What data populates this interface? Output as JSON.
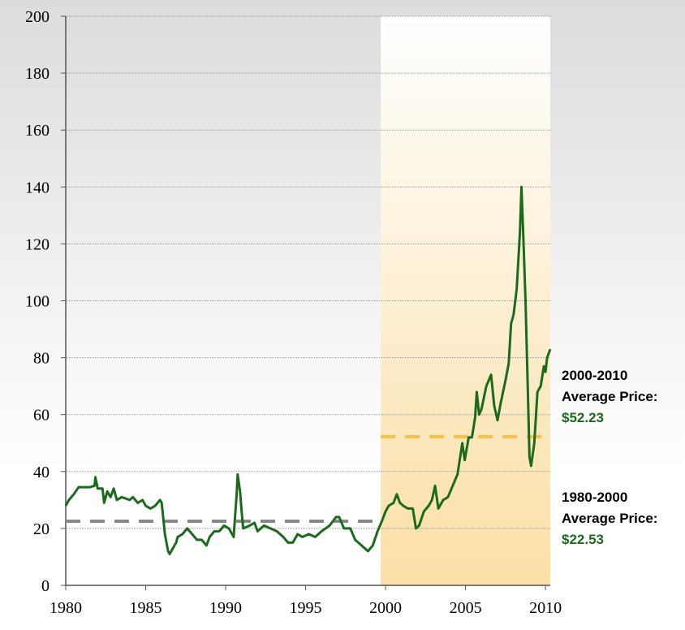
{
  "chart_data": {
    "type": "line",
    "x": [
      1980,
      1980.2,
      1980.5,
      1980.8,
      1981,
      1981.5,
      1981.8,
      1981.85,
      1982,
      1982.3,
      1982.4,
      1982.6,
      1982.8,
      1983,
      1983.2,
      1983.5,
      1984,
      1984.2,
      1984.5,
      1984.8,
      1985,
      1985.3,
      1985.6,
      1985.9,
      1986,
      1986.2,
      1986.4,
      1986.5,
      1986.7,
      1986.9,
      1987,
      1987.3,
      1987.6,
      1987.9,
      1988.2,
      1988.5,
      1988.8,
      1989,
      1989.3,
      1989.6,
      1989.9,
      1990.2,
      1990.5,
      1990.7,
      1990.75,
      1990.9,
      1991,
      1991.1,
      1991.5,
      1991.8,
      1992,
      1992.4,
      1992.8,
      1993.2,
      1993.6,
      1993.9,
      1994.2,
      1994.5,
      1994.8,
      1995.2,
      1995.6,
      1996,
      1996.5,
      1996.9,
      1997.1,
      1997.4,
      1997.8,
      1998.1,
      1998.5,
      1998.9,
      1999.2,
      1999.5,
      1999.8,
      2000,
      2000.2,
      2000.5,
      2000.7,
      2000.9,
      2001.1,
      2001.4,
      2001.7,
      2001.9,
      2002.1,
      2002.4,
      2002.7,
      2002.9,
      2003.1,
      2003.3,
      2003.6,
      2003.9,
      2004.2,
      2004.5,
      2004.8,
      2004.95,
      2005.2,
      2005.4,
      2005.6,
      2005.7,
      2005.85,
      2006,
      2006.3,
      2006.6,
      2006.8,
      2007,
      2007.2,
      2007.5,
      2007.7,
      2007.85,
      2008,
      2008.2,
      2008.4,
      2008.5,
      2008.6,
      2008.75,
      2008.9,
      2009,
      2009.1,
      2009.3,
      2009.5,
      2009.7,
      2009.9,
      2010,
      2010.1,
      2010.3
    ],
    "series": [
      {
        "color": "#1a6b1a",
        "values": [
          28,
          30,
          32,
          34.5,
          34.5,
          34.5,
          35,
          38,
          34,
          34,
          29,
          33,
          31,
          34,
          30,
          31,
          30,
          31,
          29,
          30,
          28,
          27,
          28,
          30,
          29,
          18,
          12,
          11,
          13,
          15,
          17,
          18,
          20,
          18,
          16,
          16,
          14,
          17,
          19,
          19,
          21,
          20,
          17,
          33,
          39,
          33,
          26,
          20,
          21,
          22,
          19,
          21,
          20,
          19,
          17,
          15,
          15,
          18,
          17,
          18,
          17,
          19,
          21,
          24,
          24,
          20,
          20,
          16,
          14,
          12,
          14,
          19,
          23,
          26,
          28,
          29,
          32,
          29,
          28,
          27,
          27,
          20,
          21,
          26,
          28,
          30,
          35,
          27,
          30,
          31,
          35,
          39,
          50,
          44,
          52,
          52,
          59,
          68,
          60,
          62,
          70,
          74,
          63,
          58,
          64,
          72,
          78,
          92,
          95,
          104,
          124,
          140,
          125,
          100,
          68,
          45,
          42,
          50,
          68,
          70,
          77,
          75,
          80,
          83
        ]
      }
    ],
    "xlim": [
      1980,
      2010.3
    ],
    "ylim": [
      0,
      200
    ],
    "xticks": [
      1980,
      1985,
      1990,
      1995,
      2000,
      2005,
      2010
    ],
    "yticks": [
      0,
      20,
      40,
      60,
      80,
      100,
      120,
      140,
      160,
      180,
      200
    ],
    "grid": true,
    "highlight_x": [
      1999.7,
      2010.3
    ],
    "annotations": [
      {
        "text": [
          "2000-2010",
          "Average Price:"
        ],
        "value_label": "$52.23",
        "value": 52.23,
        "x_range": [
          1999.7,
          2010.3
        ],
        "color": "#f5c242"
      },
      {
        "text": [
          "1980-2000",
          "Average Price:"
        ],
        "value_label": "$22.53",
        "value": 22.53,
        "x_range": [
          1980,
          1999.7
        ],
        "color": "#888888"
      }
    ]
  }
}
